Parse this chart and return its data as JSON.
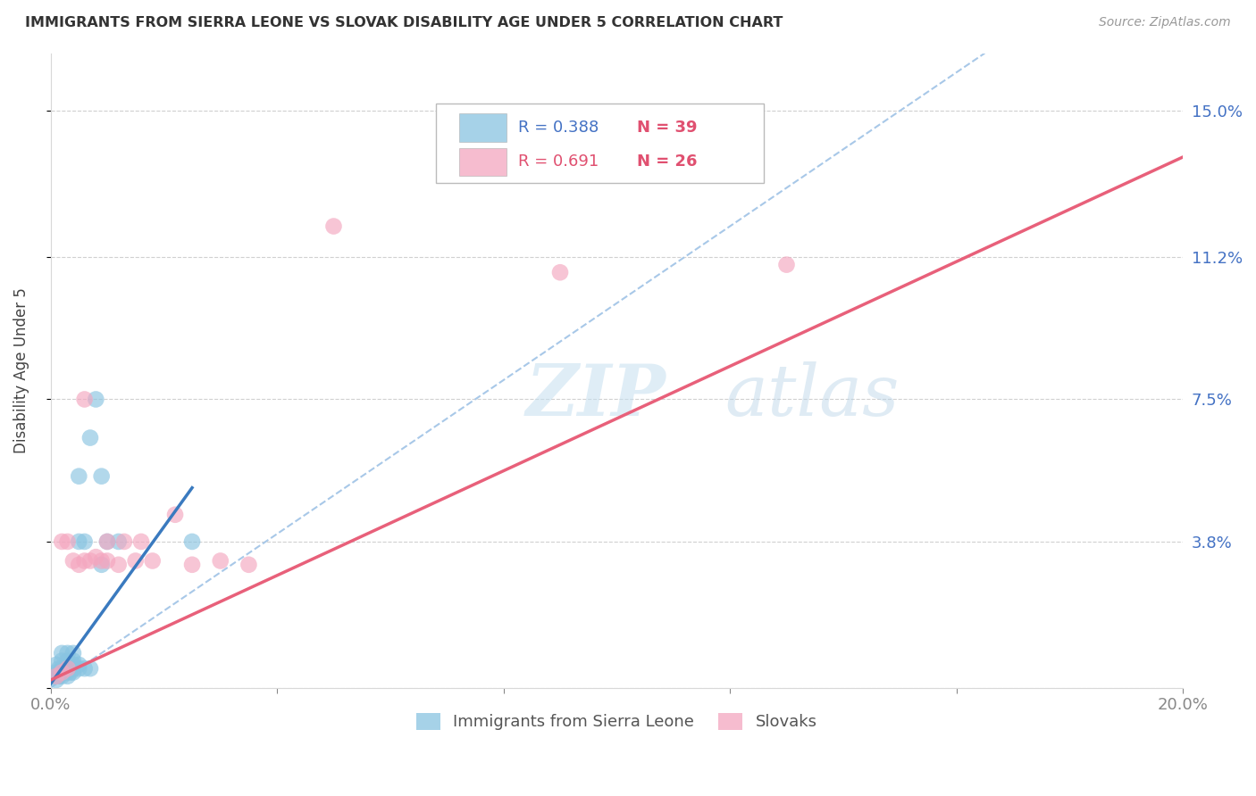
{
  "title": "IMMIGRANTS FROM SIERRA LEONE VS SLOVAK DISABILITY AGE UNDER 5 CORRELATION CHART",
  "source": "Source: ZipAtlas.com",
  "xlabel_blue": "Immigrants from Sierra Leone",
  "xlabel_pink": "Slovaks",
  "ylabel": "Disability Age Under 5",
  "xmin": 0.0,
  "xmax": 0.2,
  "ymin": 0.0,
  "ymax": 0.165,
  "yticks": [
    0.0,
    0.038,
    0.075,
    0.112,
    0.15
  ],
  "ytick_labels": [
    "",
    "3.8%",
    "7.5%",
    "11.2%",
    "15.0%"
  ],
  "xtick_labels": [
    "0.0%",
    "",
    "",
    "",
    "",
    "20.0%"
  ],
  "xticks": [
    0.0,
    0.04,
    0.08,
    0.12,
    0.16,
    0.2
  ],
  "legend_r_blue": "R = 0.388",
  "legend_n_blue": "N = 39",
  "legend_r_pink": "R = 0.691",
  "legend_n_pink": "N = 26",
  "color_blue": "#89c4e1",
  "color_pink": "#f4a6bf",
  "line_color_blue": "#3a7abf",
  "line_color_pink": "#e8607a",
  "line_color_diagonal": "#a8c8e8",
  "watermark_zip": "ZIP",
  "watermark_atlas": "atlas",
  "blue_points_x": [
    0.0005,
    0.001,
    0.001,
    0.001,
    0.001,
    0.0015,
    0.0015,
    0.002,
    0.002,
    0.002,
    0.002,
    0.002,
    0.0025,
    0.003,
    0.003,
    0.003,
    0.003,
    0.003,
    0.003,
    0.0035,
    0.004,
    0.004,
    0.004,
    0.004,
    0.004,
    0.005,
    0.005,
    0.005,
    0.005,
    0.006,
    0.006,
    0.007,
    0.007,
    0.008,
    0.009,
    0.009,
    0.01,
    0.012,
    0.025
  ],
  "blue_points_y": [
    0.003,
    0.002,
    0.003,
    0.004,
    0.006,
    0.003,
    0.005,
    0.003,
    0.004,
    0.005,
    0.007,
    0.009,
    0.004,
    0.003,
    0.004,
    0.005,
    0.006,
    0.007,
    0.009,
    0.004,
    0.004,
    0.005,
    0.006,
    0.007,
    0.009,
    0.005,
    0.006,
    0.038,
    0.055,
    0.005,
    0.038,
    0.005,
    0.065,
    0.075,
    0.032,
    0.055,
    0.038,
    0.038,
    0.038
  ],
  "pink_points_x": [
    0.001,
    0.002,
    0.002,
    0.003,
    0.003,
    0.004,
    0.005,
    0.006,
    0.006,
    0.007,
    0.008,
    0.009,
    0.01,
    0.01,
    0.012,
    0.013,
    0.015,
    0.016,
    0.018,
    0.022,
    0.025,
    0.03,
    0.035,
    0.05,
    0.09,
    0.13
  ],
  "pink_points_y": [
    0.003,
    0.004,
    0.038,
    0.005,
    0.038,
    0.033,
    0.032,
    0.033,
    0.075,
    0.033,
    0.034,
    0.033,
    0.033,
    0.038,
    0.032,
    0.038,
    0.033,
    0.038,
    0.033,
    0.045,
    0.032,
    0.033,
    0.032,
    0.12,
    0.108,
    0.11
  ],
  "blue_line_x": [
    0.0,
    0.025
  ],
  "blue_line_y": [
    0.001,
    0.052
  ],
  "pink_line_x": [
    0.0,
    0.2
  ],
  "pink_line_y": [
    0.002,
    0.138
  ],
  "diag_line_x": [
    0.0,
    0.165
  ],
  "diag_line_y": [
    0.0,
    0.165
  ]
}
